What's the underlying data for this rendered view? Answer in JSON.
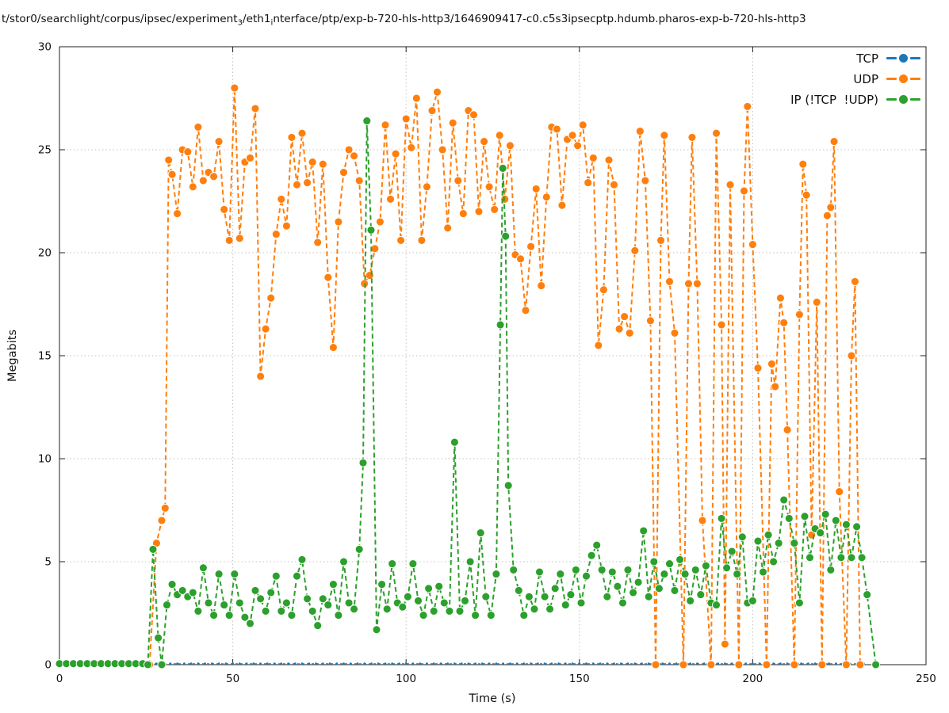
{
  "title": {
    "part1": "t/stor0/searchlight/corpus/ipsec/experiment",
    "sub1": "3",
    "part2": "/eth1",
    "sub2": "i",
    "part3": "nterface/ptp/exp-b-720-hls-http3/1646909417-c0.c5s3ipsecptp.hdumb.pharos-exp-b-720-hls-http3"
  },
  "axes": {
    "x_label": "Time (s)",
    "y_label": "Megabits"
  },
  "legend": {
    "items": [
      {
        "label": "TCP",
        "color": "#1f77b4"
      },
      {
        "label": "UDP",
        "color": "#ff7f0e"
      },
      {
        "label": "IP (!TCP  !UDP)",
        "color": "#2ca02c"
      }
    ]
  },
  "chart_data": {
    "type": "line",
    "title": "t/stor0/searchlight/corpus/ipsec/experiment₃/eth1ᵢnterface/ptp/exp-b-720-hls-http3/1646909417-c0.c5s3ipsecptp.hdumb.pharos-exp-b-720-hls-http3",
    "xlabel": "Time (s)",
    "ylabel": "Megabits",
    "x_range": [
      0,
      250
    ],
    "y_range": [
      0,
      30
    ],
    "x_ticks": [
      0,
      50,
      100,
      150,
      200,
      250
    ],
    "y_ticks": [
      0,
      5,
      10,
      15,
      20,
      25,
      30
    ],
    "grid": true,
    "grid_style": "dotted",
    "legend_position": "top-right",
    "line_style": "dashed with circle markers",
    "series": [
      {
        "name": "TCP",
        "color": "#1f77b4",
        "dash": "3 3",
        "width": 1,
        "marker_radius": 1.4,
        "gen": {
          "start": 0,
          "end": 232,
          "step": 2,
          "value": 0.05
        }
      },
      {
        "name": "UDP",
        "color": "#ff7f0e",
        "dash": "6 4",
        "width": 2,
        "marker_radius": 5,
        "points": [
          [
            26,
            0
          ],
          [
            28,
            5.9
          ],
          [
            29.5,
            7.0
          ],
          [
            30.5,
            7.6
          ],
          [
            31.5,
            24.5
          ],
          [
            32.5,
            23.8
          ],
          [
            34,
            21.9
          ],
          [
            35.5,
            25.0
          ],
          [
            37,
            24.9
          ],
          [
            38.5,
            23.2
          ],
          [
            40,
            26.1
          ],
          [
            41.5,
            23.5
          ],
          [
            43,
            23.9
          ],
          [
            44.5,
            23.7
          ],
          [
            46,
            25.4
          ],
          [
            47.5,
            22.1
          ],
          [
            49,
            20.6
          ],
          [
            50.5,
            28.0
          ],
          [
            52,
            20.7
          ],
          [
            53.5,
            24.4
          ],
          [
            55,
            24.6
          ],
          [
            56.5,
            27.0
          ],
          [
            58,
            14.0
          ],
          [
            59.5,
            16.3
          ],
          [
            61,
            17.8
          ],
          [
            62.5,
            20.9
          ],
          [
            64,
            22.6
          ],
          [
            65.5,
            21.3
          ],
          [
            67,
            25.6
          ],
          [
            68.5,
            23.3
          ],
          [
            70,
            25.8
          ],
          [
            71.5,
            23.4
          ],
          [
            73,
            24.4
          ],
          [
            74.5,
            20.5
          ],
          [
            76,
            24.3
          ],
          [
            77.5,
            18.8
          ],
          [
            79,
            15.4
          ],
          [
            80.5,
            21.5
          ],
          [
            82,
            23.9
          ],
          [
            83.5,
            25.0
          ],
          [
            85,
            24.7
          ],
          [
            86.5,
            23.5
          ],
          [
            88,
            18.5
          ],
          [
            89.5,
            18.9
          ],
          [
            91,
            20.2
          ],
          [
            92.5,
            21.5
          ],
          [
            94,
            26.2
          ],
          [
            95.5,
            22.6
          ],
          [
            97,
            24.8
          ],
          [
            98.5,
            20.6
          ],
          [
            100,
            26.5
          ],
          [
            101.5,
            25.1
          ],
          [
            103,
            27.5
          ],
          [
            104.5,
            20.6
          ],
          [
            106,
            23.2
          ],
          [
            107.5,
            26.9
          ],
          [
            109,
            27.8
          ],
          [
            110.5,
            25.0
          ],
          [
            112,
            21.2
          ],
          [
            113.5,
            26.3
          ],
          [
            115,
            23.5
          ],
          [
            116.5,
            21.9
          ],
          [
            118,
            26.9
          ],
          [
            119.5,
            26.7
          ],
          [
            121,
            22.0
          ],
          [
            122.5,
            25.4
          ],
          [
            124,
            23.2
          ],
          [
            125.5,
            22.1
          ],
          [
            127,
            25.7
          ],
          [
            128.5,
            22.6
          ],
          [
            130,
            25.2
          ],
          [
            131.5,
            19.9
          ],
          [
            133,
            19.7
          ],
          [
            134.5,
            17.2
          ],
          [
            136,
            20.3
          ],
          [
            137.5,
            23.1
          ],
          [
            139,
            18.4
          ],
          [
            140.5,
            22.7
          ],
          [
            142,
            26.1
          ],
          [
            143.5,
            26.0
          ],
          [
            145,
            22.3
          ],
          [
            146.5,
            25.5
          ],
          [
            148,
            25.7
          ],
          [
            149.5,
            25.2
          ],
          [
            151,
            26.2
          ],
          [
            152.5,
            23.4
          ],
          [
            154,
            24.6
          ],
          [
            155.5,
            15.5
          ],
          [
            157,
            18.2
          ],
          [
            158.5,
            24.5
          ],
          [
            160,
            23.3
          ],
          [
            161.5,
            16.3
          ],
          [
            163,
            16.9
          ],
          [
            164.5,
            16.1
          ],
          [
            166,
            20.1
          ],
          [
            167.5,
            25.9
          ],
          [
            169,
            23.5
          ],
          [
            170.5,
            16.7
          ],
          [
            172,
            0
          ],
          [
            173.5,
            20.6
          ],
          [
            174.5,
            25.7
          ],
          [
            176,
            18.6
          ],
          [
            177.5,
            16.1
          ],
          [
            180,
            0
          ],
          [
            181.5,
            18.5
          ],
          [
            182.5,
            25.6
          ],
          [
            184,
            18.5
          ],
          [
            185.5,
            7.0
          ],
          [
            188,
            0
          ],
          [
            189.5,
            25.8
          ],
          [
            191,
            16.5
          ],
          [
            192,
            1.0
          ],
          [
            193.5,
            23.3
          ],
          [
            196,
            0
          ],
          [
            197.5,
            23.0
          ],
          [
            198.5,
            27.1
          ],
          [
            200,
            20.4
          ],
          [
            201.5,
            14.4
          ],
          [
            204,
            0
          ],
          [
            205.5,
            14.6
          ],
          [
            206.5,
            13.5
          ],
          [
            208,
            17.8
          ],
          [
            209,
            16.6
          ],
          [
            210,
            11.4
          ],
          [
            212,
            0
          ],
          [
            213.5,
            17.0
          ],
          [
            214.5,
            24.3
          ],
          [
            215.5,
            22.8
          ],
          [
            217,
            6.3
          ],
          [
            218.5,
            17.6
          ],
          [
            220,
            0
          ],
          [
            221.5,
            21.8
          ],
          [
            222.5,
            22.2
          ],
          [
            223.5,
            25.4
          ],
          [
            225,
            8.4
          ],
          [
            227,
            0
          ],
          [
            228.5,
            15.0
          ],
          [
            229.5,
            18.6
          ],
          [
            231,
            0
          ]
        ]
      },
      {
        "name": "IP (!TCP  !UDP)",
        "color": "#2ca02c",
        "dash": "6 4",
        "width": 2,
        "marker_radius": 5,
        "points": [
          [
            0,
            0.05
          ],
          [
            2,
            0.05
          ],
          [
            4,
            0.05
          ],
          [
            6,
            0.05
          ],
          [
            8,
            0.05
          ],
          [
            10,
            0.05
          ],
          [
            12,
            0.05
          ],
          [
            14,
            0.05
          ],
          [
            16,
            0.05
          ],
          [
            18,
            0.05
          ],
          [
            20,
            0.05
          ],
          [
            22,
            0.05
          ],
          [
            24,
            0.05
          ],
          [
            25.5,
            0
          ],
          [
            27,
            5.6
          ],
          [
            28.5,
            1.3
          ],
          [
            29.5,
            0
          ],
          [
            31,
            2.9
          ],
          [
            32.5,
            3.9
          ],
          [
            34,
            3.4
          ],
          [
            35.5,
            3.6
          ],
          [
            37,
            3.3
          ],
          [
            38.5,
            3.5
          ],
          [
            40,
            2.6
          ],
          [
            41.5,
            4.7
          ],
          [
            43,
            3.0
          ],
          [
            44.5,
            2.4
          ],
          [
            46,
            4.4
          ],
          [
            47.5,
            2.9
          ],
          [
            49,
            2.4
          ],
          [
            50.5,
            4.4
          ],
          [
            52,
            3.0
          ],
          [
            53.5,
            2.3
          ],
          [
            55,
            2.0
          ],
          [
            56.5,
            3.6
          ],
          [
            58,
            3.2
          ],
          [
            59.5,
            2.6
          ],
          [
            61,
            3.5
          ],
          [
            62.5,
            4.3
          ],
          [
            64,
            2.6
          ],
          [
            65.5,
            3.0
          ],
          [
            67,
            2.4
          ],
          [
            68.5,
            4.3
          ],
          [
            70,
            5.1
          ],
          [
            71.5,
            3.2
          ],
          [
            73,
            2.6
          ],
          [
            74.5,
            1.9
          ],
          [
            76,
            3.2
          ],
          [
            77.5,
            2.9
          ],
          [
            79,
            3.9
          ],
          [
            80.5,
            2.4
          ],
          [
            82,
            5.0
          ],
          [
            83.5,
            3.0
          ],
          [
            85,
            2.7
          ],
          [
            86.5,
            5.6
          ],
          [
            87.6,
            9.8
          ],
          [
            88.7,
            26.4
          ],
          [
            89.9,
            21.1
          ],
          [
            91.5,
            1.7
          ],
          [
            93,
            3.9
          ],
          [
            94.5,
            2.7
          ],
          [
            96,
            4.9
          ],
          [
            97.5,
            3.0
          ],
          [
            99,
            2.8
          ],
          [
            100.5,
            3.3
          ],
          [
            102,
            4.9
          ],
          [
            103.5,
            3.1
          ],
          [
            105,
            2.4
          ],
          [
            106.5,
            3.7
          ],
          [
            108,
            2.6
          ],
          [
            109.5,
            3.8
          ],
          [
            111,
            3.0
          ],
          [
            112.5,
            2.6
          ],
          [
            114,
            10.8
          ],
          [
            115.5,
            2.6
          ],
          [
            117,
            3.1
          ],
          [
            118.5,
            5.0
          ],
          [
            120,
            2.4
          ],
          [
            121.5,
            6.4
          ],
          [
            123,
            3.3
          ],
          [
            124.5,
            2.4
          ],
          [
            126,
            4.4
          ],
          [
            127.2,
            16.5
          ],
          [
            127.9,
            24.1
          ],
          [
            128.7,
            20.8
          ],
          [
            129.5,
            8.7
          ],
          [
            131,
            4.6
          ],
          [
            132.5,
            3.6
          ],
          [
            134,
            2.4
          ],
          [
            135.5,
            3.3
          ],
          [
            137,
            2.7
          ],
          [
            138.5,
            4.5
          ],
          [
            140,
            3.3
          ],
          [
            141.5,
            2.7
          ],
          [
            143,
            3.7
          ],
          [
            144.5,
            4.4
          ],
          [
            146,
            2.9
          ],
          [
            147.5,
            3.4
          ],
          [
            149,
            4.6
          ],
          [
            150.5,
            3.0
          ],
          [
            152,
            4.3
          ],
          [
            153.5,
            5.3
          ],
          [
            155,
            5.8
          ],
          [
            156.5,
            4.6
          ],
          [
            158,
            3.3
          ],
          [
            159.5,
            4.5
          ],
          [
            161,
            3.8
          ],
          [
            162.5,
            3.0
          ],
          [
            164,
            4.6
          ],
          [
            165.5,
            3.5
          ],
          [
            167,
            4.0
          ],
          [
            168.5,
            6.5
          ],
          [
            170,
            3.3
          ],
          [
            171.5,
            5.0
          ],
          [
            173,
            3.7
          ],
          [
            174.5,
            4.4
          ],
          [
            176,
            4.9
          ],
          [
            177.5,
            3.6
          ],
          [
            179,
            5.1
          ],
          [
            180.5,
            4.4
          ],
          [
            182,
            3.1
          ],
          [
            183.5,
            4.6
          ],
          [
            185,
            3.4
          ],
          [
            186.5,
            4.8
          ],
          [
            188,
            3.0
          ],
          [
            189.5,
            2.9
          ],
          [
            191,
            7.1
          ],
          [
            192.5,
            4.7
          ],
          [
            194,
            5.5
          ],
          [
            195.5,
            4.4
          ],
          [
            197,
            6.2
          ],
          [
            198.5,
            3.0
          ],
          [
            200,
            3.1
          ],
          [
            201.5,
            6.0
          ],
          [
            203,
            4.5
          ],
          [
            204.5,
            6.3
          ],
          [
            206,
            5.0
          ],
          [
            207.5,
            5.9
          ],
          [
            209,
            8.0
          ],
          [
            210.5,
            7.1
          ],
          [
            212,
            5.9
          ],
          [
            213.5,
            3.0
          ],
          [
            215,
            7.2
          ],
          [
            216.5,
            5.2
          ],
          [
            218,
            6.6
          ],
          [
            219.5,
            6.4
          ],
          [
            221,
            7.3
          ],
          [
            222.5,
            4.6
          ],
          [
            224,
            7.0
          ],
          [
            225.5,
            5.2
          ],
          [
            227,
            6.8
          ],
          [
            228.5,
            5.2
          ],
          [
            230,
            6.7
          ],
          [
            231.5,
            5.2
          ],
          [
            233,
            3.4
          ],
          [
            235.5,
            0
          ]
        ]
      }
    ]
  }
}
